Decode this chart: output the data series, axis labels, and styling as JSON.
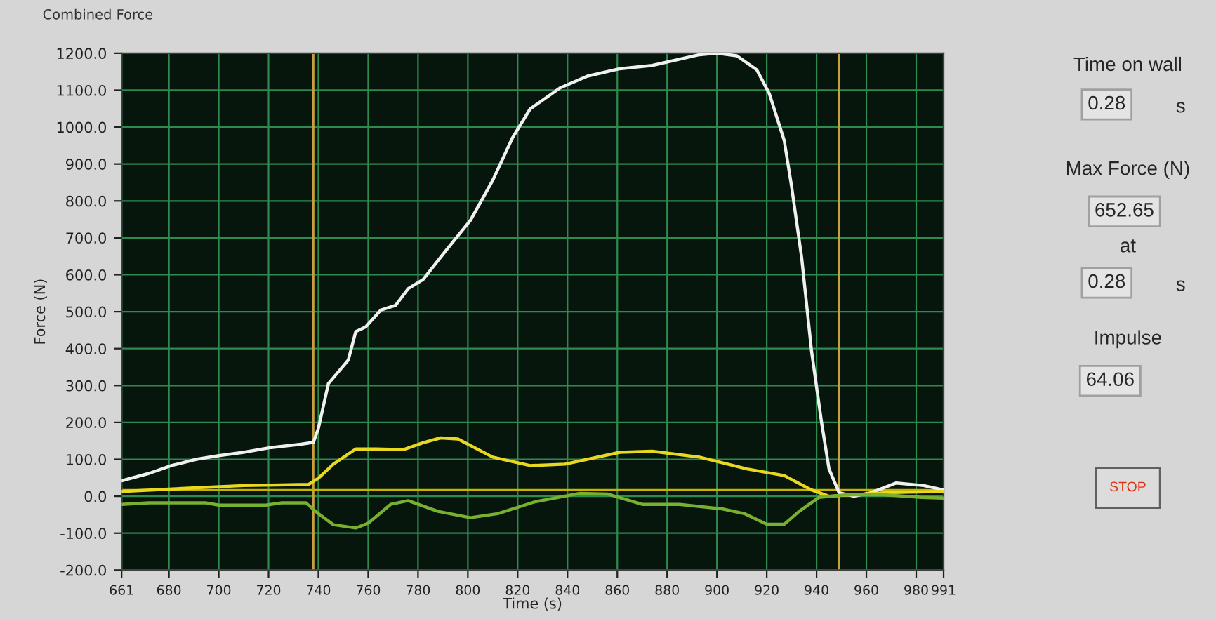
{
  "chart_data": [
    {
      "type": "line",
      "title": "Combined Force",
      "xlabel": "Time (s)",
      "ylabel": "Force (N)",
      "xlim": [
        661,
        991
      ],
      "xticks": [
        661,
        680,
        700,
        720,
        740,
        760,
        780,
        800,
        820,
        840,
        860,
        880,
        900,
        920,
        940,
        960,
        980,
        991
      ],
      "ylim": [
        -200,
        1200
      ],
      "yticks": [
        {
          "value": -200,
          "label": "-200.0"
        },
        {
          "value": -100,
          "label": "-100.0"
        },
        {
          "value": 0,
          "label": "0.0"
        },
        {
          "value": 100,
          "label": "100.0"
        },
        {
          "value": 200,
          "label": "200.0"
        },
        {
          "value": 300,
          "label": "300.0"
        },
        {
          "value": 400,
          "label": "400.0"
        },
        {
          "value": 500,
          "label": "500.0"
        },
        {
          "value": 600,
          "label": "600.0"
        },
        {
          "value": 700,
          "label": "700.0"
        },
        {
          "value": 800,
          "label": "800.0"
        },
        {
          "value": 900,
          "label": "900.0"
        },
        {
          "value": 1000,
          "label": "1000.0"
        },
        {
          "value": 1100,
          "label": "1100.0"
        },
        {
          "value": 1200,
          "label": "1200.0"
        }
      ],
      "grid": true,
      "legend": false,
      "line_style": "solid",
      "marker": "none",
      "ref_lines": [
        {
          "axis": "x",
          "value": 738,
          "label": null,
          "color": "#c8a040"
        },
        {
          "axis": "x",
          "value": 949,
          "label": null,
          "color": "#c8a040"
        },
        {
          "axis": "y",
          "value": 17,
          "label": null,
          "color": "#c8b400"
        }
      ],
      "series": [
        {
          "color": "#f0f0f0",
          "x": [
            661,
            672,
            681,
            691,
            700,
            710,
            721,
            733,
            738,
            740,
            744,
            748,
            752,
            755,
            759,
            765,
            771,
            776,
            782,
            791,
            801,
            810,
            818,
            825,
            837,
            848,
            861,
            874,
            893,
            900,
            908,
            916,
            921,
            927,
            930,
            934,
            938,
            942,
            945,
            949,
            955,
            962,
            972,
            983,
            991
          ],
          "values": [
            42,
            62,
            83,
            100,
            110,
            119,
            132,
            141,
            146,
            184,
            305,
            337,
            369,
            446,
            459,
            504,
            517,
            562,
            587,
            664,
            747,
            856,
            972,
            1049,
            1106,
            1138,
            1158,
            1167,
            1196,
            1200,
            1193,
            1155,
            1091,
            964,
            838,
            647,
            392,
            200,
            74,
            10,
            0,
            10,
            36,
            29,
            17
          ]
        },
        {
          "color": "#e8d820",
          "x": [
            661,
            691,
            710,
            736,
            740,
            746,
            755,
            763,
            774,
            782,
            789,
            796,
            810,
            825,
            839,
            861,
            874,
            893,
            912,
            927,
            938,
            945,
            968,
            991
          ],
          "values": [
            13,
            23,
            29,
            32,
            49,
            87,
            128,
            128,
            126,
            145,
            158,
            155,
            106,
            83,
            87,
            119,
            122,
            106,
            74,
            56,
            17,
            0,
            10,
            13
          ]
        },
        {
          "color": "#7ab030",
          "x": [
            661,
            672,
            695,
            700,
            719,
            725,
            735,
            740,
            746,
            755,
            760,
            769,
            776,
            788,
            801,
            812,
            827,
            845,
            856,
            870,
            885,
            902,
            911,
            920,
            927,
            933,
            941,
            952,
            967,
            982,
            991
          ],
          "values": [
            -22,
            -18,
            -18,
            -24,
            -24,
            -18,
            -18,
            -47,
            -77,
            -86,
            -73,
            -22,
            -12,
            -41,
            -58,
            -47,
            -15,
            8,
            6,
            -22,
            -22,
            -34,
            -47,
            -76,
            -76,
            -41,
            -3,
            4,
            4,
            -3,
            -5
          ]
        }
      ]
    },
    {
      "type": "other",
      "annotations": [
        "Time on wall",
        "0.28",
        "s",
        "Max Force (N)",
        "652.65",
        "at",
        "0.28",
        "s",
        "Impulse",
        "64.06",
        "STOP"
      ]
    }
  ]
}
